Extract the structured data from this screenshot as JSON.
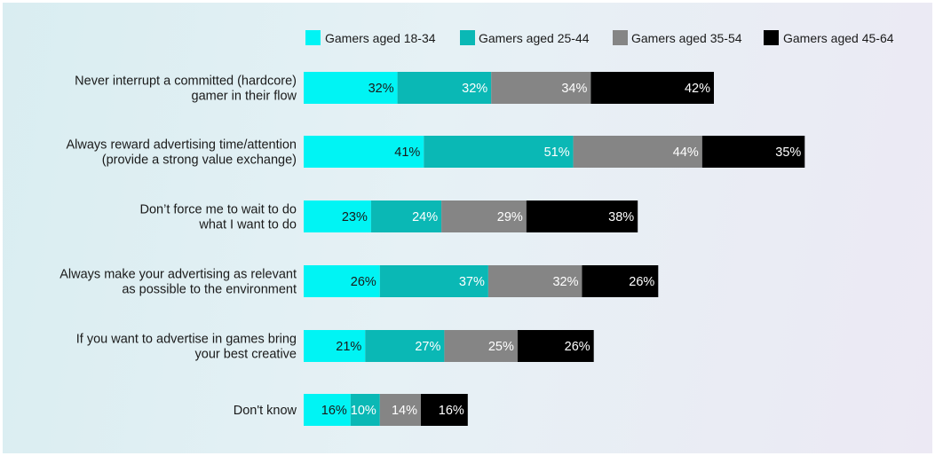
{
  "chart_data": {
    "type": "bar",
    "orientation": "horizontal",
    "stacked": true,
    "title": "",
    "xlabel": "",
    "ylabel": "",
    "legend_position": "top-right",
    "categories": [
      [
        "Never interrupt a committed (hardcore)",
        "gamer in their flow"
      ],
      [
        "Always reward advertising time/attention",
        "(provide a strong value exchange)"
      ],
      [
        "Don’t force me to wait to do",
        "what I want to do"
      ],
      [
        "Always make your advertising as relevant",
        "as possible to the environment"
      ],
      [
        "If you want to advertise in games bring",
        "your best creative"
      ],
      [
        "Don't know"
      ]
    ],
    "series": [
      {
        "name": "Gamers aged 18-34",
        "color": "#00f4f4",
        "label_color": "#1a1a1a",
        "values": [
          32,
          41,
          23,
          26,
          21,
          16
        ]
      },
      {
        "name": "Gamers aged 25-44",
        "color": "#0ab8b5",
        "label_color": "#ffffff",
        "values": [
          32,
          51,
          24,
          37,
          27,
          10
        ]
      },
      {
        "name": "Gamers aged 35-54",
        "color": "#858585",
        "label_color": "#ffffff",
        "values": [
          34,
          44,
          29,
          32,
          25,
          14
        ]
      },
      {
        "name": "Gamers aged 45-64",
        "color": "#000000",
        "label_color": "#ffffff",
        "values": [
          42,
          35,
          38,
          26,
          26,
          16
        ]
      }
    ],
    "value_suffix": "%"
  }
}
